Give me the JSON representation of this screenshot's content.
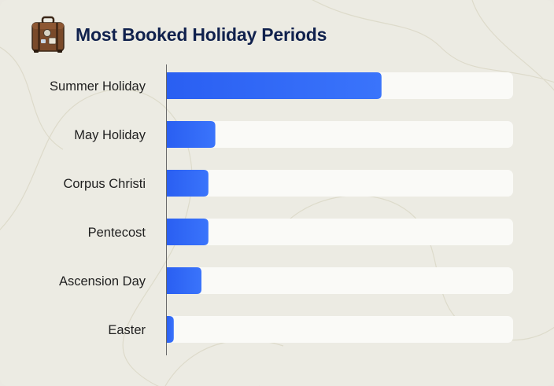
{
  "header": {
    "title": "Most Booked Holiday Periods",
    "icon": "suitcase-icon"
  },
  "chart_data": {
    "type": "bar",
    "orientation": "horizontal",
    "title": "Most Booked Holiday Periods",
    "categories": [
      "Summer Holiday",
      "May Holiday",
      "Corpus Christi",
      "Pentecost",
      "Ascension Day",
      "Easter"
    ],
    "values": [
      62,
      14,
      12,
      12,
      10,
      2
    ],
    "xlim": [
      0,
      100
    ],
    "xlabel": "",
    "ylabel": "",
    "grid": false,
    "bar_color": "#2f66f2",
    "track_color": "#fafaf7"
  }
}
